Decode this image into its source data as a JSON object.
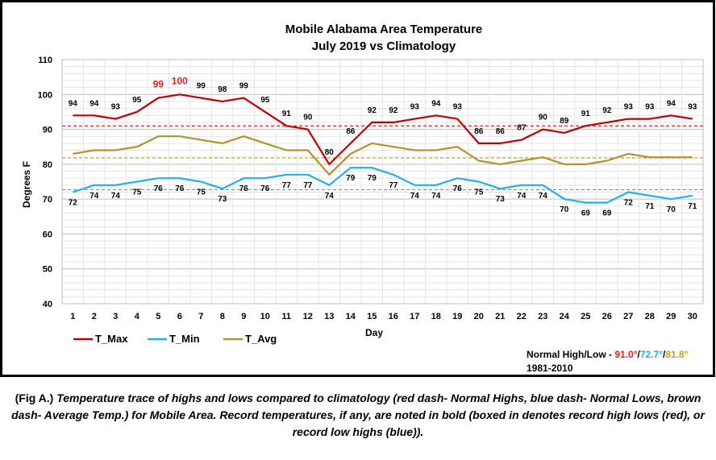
{
  "chart_data": {
    "type": "line",
    "title": "Mobile Alabama Area Temperature",
    "subtitle": "July 2019 vs Climatology",
    "xlabel": "Day",
    "ylabel": "Degrees F",
    "ylim": [
      40,
      110
    ],
    "yticks": [
      40,
      50,
      60,
      70,
      80,
      90,
      100,
      110
    ],
    "x": [
      1,
      2,
      3,
      4,
      5,
      6,
      7,
      8,
      9,
      10,
      11,
      12,
      13,
      14,
      15,
      16,
      17,
      18,
      19,
      20,
      21,
      22,
      23,
      24,
      25,
      26,
      27,
      28,
      29,
      30
    ],
    "grid": true,
    "legend_position": "bottom-left",
    "series": [
      {
        "name": "T_Max",
        "color": "#c00000",
        "values": [
          94,
          94,
          93,
          95,
          99,
          100,
          99,
          98,
          99,
          95,
          91,
          90,
          80,
          86,
          92,
          92,
          93,
          94,
          93,
          86,
          86,
          87,
          90,
          89,
          91,
          92,
          93,
          93,
          94,
          93
        ],
        "labels": [
          94,
          94,
          93,
          95,
          99,
          100,
          99,
          98,
          99,
          95,
          91,
          90,
          80,
          86,
          92,
          92,
          93,
          94,
          93,
          86,
          86,
          87,
          90,
          89,
          91,
          92,
          93,
          93,
          94,
          93
        ],
        "record_days": [
          5,
          6
        ]
      },
      {
        "name": "T_Min",
        "color": "#1fb1e8",
        "values": [
          72,
          74,
          74,
          75,
          76,
          76,
          75,
          73,
          76,
          76,
          77,
          77,
          74,
          79,
          79,
          77,
          74,
          74,
          76,
          75,
          73,
          74,
          74,
          70,
          69,
          69,
          72,
          71,
          70,
          71
        ],
        "labels": [
          72,
          74,
          74,
          75,
          76,
          76,
          75,
          73,
          76,
          76,
          77,
          77,
          74,
          79,
          79,
          77,
          74,
          74,
          76,
          75,
          73,
          74,
          74,
          70,
          69,
          69,
          72,
          71,
          70,
          71
        ]
      },
      {
        "name": "T_Avg",
        "color": "#b8902a",
        "values": [
          83,
          84,
          84,
          85,
          88,
          88,
          87,
          86,
          88,
          86,
          84,
          84,
          77,
          83,
          86,
          85,
          84,
          84,
          85,
          81,
          80,
          81,
          82,
          80,
          80,
          81,
          83,
          82,
          82,
          82
        ]
      }
    ],
    "normals": [
      {
        "value": 91.0,
        "label": "91.0°",
        "color": "#e41e1e"
      },
      {
        "value": 72.7,
        "label": "72.7°",
        "color": "#1fb1e8"
      },
      {
        "value": 81.8,
        "label": "81.8°",
        "color": "#c8a020"
      }
    ],
    "normals_heading": "Normal High/Low - ",
    "normals_period": "1981-2010",
    "colors": {
      "red_dash": "#e41e1e",
      "blue_dash": "#1fb1e8",
      "brown_dash": "#c8a020",
      "record": "#e41e1e"
    }
  },
  "caption": {
    "fig": "(Fig A.)",
    "text": " Temperature trace of highs and lows compared to climatology (red dash- Normal Highs, blue dash- Normal Lows, brown dash- Average Temp.) for Mobile Area. Record temperatures, if any, are noted in bold (boxed in denotes record high lows (red), or record low highs (blue))."
  }
}
